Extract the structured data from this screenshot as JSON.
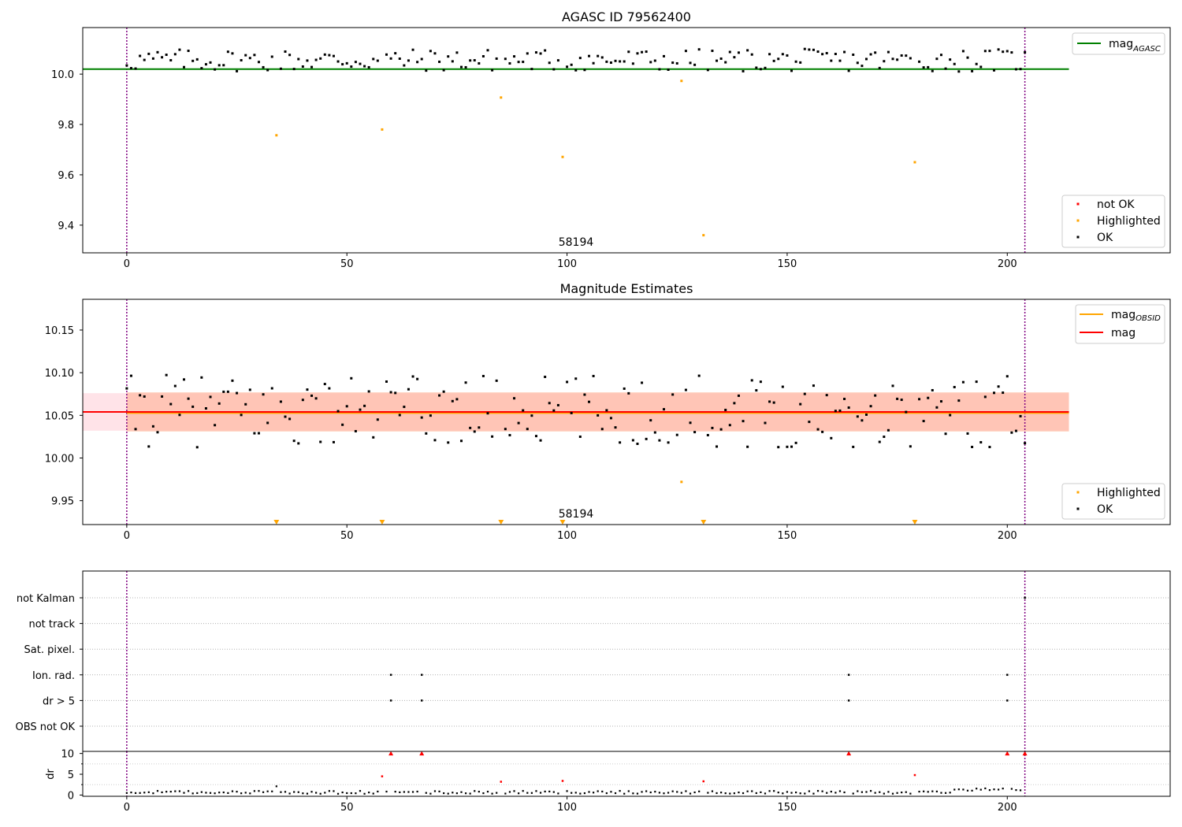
{
  "figure": {
    "colors": {
      "agasc_line": "#008000",
      "obsid_line": "#ffa500",
      "mag_line": "#ff0000",
      "ok": "#000000",
      "highlighted": "#ffa500",
      "not_ok": "#ff0000",
      "obs_vline": "#800080",
      "band_inner": "#ffa07a",
      "band_outer": "#ffc0cb"
    }
  },
  "chart_data": [
    {
      "id": "agasc",
      "type": "scatter",
      "title": "AGASC ID 79562400",
      "xlabel": "",
      "ylabel": "",
      "xlim": [
        -10,
        237
      ],
      "ylim": [
        9.29,
        10.185
      ],
      "xticks": [
        0,
        50,
        100,
        150,
        200
      ],
      "yticks": [
        9.4,
        9.6,
        9.8,
        10.0
      ],
      "ytick_labels": [
        "9.4",
        "9.6",
        "9.8",
        "10.0"
      ],
      "obs_lines_x": [
        0,
        204
      ],
      "obs_labels": [
        {
          "x": 102,
          "text": "58194"
        }
      ],
      "hline": {
        "y": 10.02,
        "x": [
          -10,
          214
        ],
        "label": "mag_AGASC"
      },
      "legend_top": [
        {
          "label": "mag",
          "sub": "AGASC",
          "style": "line",
          "color": "#008000"
        }
      ],
      "legend_bottom": [
        {
          "label": "not OK",
          "color": "#ff0000"
        },
        {
          "label": "Highlighted",
          "color": "#ffa500"
        },
        {
          "label": "OK",
          "color": "#000000"
        }
      ],
      "series": [
        {
          "name": "Highlighted",
          "color": "#ffa500",
          "x": [
            34,
            58,
            85,
            99,
            126,
            131,
            179
          ],
          "y": [
            9.757,
            9.78,
            9.907,
            9.671,
            9.973,
            9.36,
            9.65
          ]
        }
      ]
    },
    {
      "id": "estimates",
      "type": "scatter",
      "title": "Magnitude Estimates",
      "xlabel": "",
      "ylabel": "",
      "xlim": [
        -10,
        237
      ],
      "ylim": [
        9.922,
        10.186
      ],
      "xticks": [
        0,
        50,
        100,
        150,
        200
      ],
      "yticks": [
        9.95,
        10.0,
        10.05,
        10.1,
        10.15
      ],
      "ytick_labels": [
        "9.95",
        "10.00",
        "10.05",
        "10.10",
        "10.15"
      ],
      "obs_lines_x": [
        0,
        204
      ],
      "obs_labels": [
        {
          "x": 102,
          "text": "58194"
        }
      ],
      "mag": 10.054,
      "mag_obsid": 10.053,
      "band_obsid": [
        10.031,
        10.077
      ],
      "band_mag": [
        10.032,
        10.076
      ],
      "line_x": [
        -10,
        214
      ],
      "legend_top": [
        {
          "label": "mag",
          "sub": "OBSID",
          "style": "line",
          "color": "#ffa500"
        },
        {
          "label": "mag",
          "sub": "",
          "style": "line",
          "color": "#ff0000"
        }
      ],
      "legend_bottom": [
        {
          "label": "Highlighted",
          "color": "#ffa500"
        },
        {
          "label": "OK",
          "color": "#000000"
        }
      ],
      "series": [
        {
          "name": "Highlighted",
          "color": "#ffa500",
          "x": [
            126
          ],
          "y": [
            9.972
          ]
        },
        {
          "name": "Highlighted (below axis)",
          "color": "#ffa500",
          "marker": "triangle-down",
          "x": [
            34,
            58,
            85,
            99,
            131,
            179
          ],
          "y": [
            9.925,
            9.925,
            9.925,
            9.925,
            9.925,
            9.925
          ]
        }
      ]
    },
    {
      "id": "flags",
      "type": "scatter",
      "title": "",
      "xlabel": "",
      "ylabel": "",
      "xlim": [
        -10,
        237
      ],
      "categories": [
        "OBS not OK",
        "dr > 5",
        "Ion. rad.",
        "Sat. pixel.",
        "not track",
        "not Kalman"
      ],
      "xticks": [
        0,
        50,
        100,
        150,
        200
      ],
      "obs_lines_x": [
        0,
        204
      ],
      "series": [
        {
          "name": "Ion. rad.",
          "color": "#000000",
          "x": [
            60,
            67,
            164,
            200
          ]
        },
        {
          "name": "dr > 5",
          "color": "#000000",
          "x": [
            60,
            67,
            164,
            200
          ]
        },
        {
          "name": "not Kalman",
          "color": "#000000",
          "x": [
            204
          ]
        }
      ]
    },
    {
      "id": "dr",
      "type": "scatter",
      "title": "",
      "xlabel": "",
      "ylabel": "dr",
      "xlim": [
        -10,
        237
      ],
      "ylim": [
        -0.3,
        10.5
      ],
      "xticks": [
        0,
        50,
        100,
        150,
        200
      ],
      "yticks": [
        0,
        5,
        10
      ],
      "ytick_labels": [
        "0",
        "5",
        "10"
      ],
      "obs_lines_x": [
        0,
        204
      ],
      "series": [
        {
          "name": "not OK",
          "color": "#ff0000",
          "x": [
            58,
            85,
            99,
            131,
            179
          ],
          "y": [
            4.5,
            3.2,
            3.4,
            3.3,
            4.8
          ]
        },
        {
          "name": "not OK (clipped)",
          "color": "#ff0000",
          "marker": "triangle-up",
          "x": [
            60,
            67,
            164,
            200,
            204
          ],
          "y": [
            10,
            10,
            10,
            10,
            10
          ]
        }
      ]
    }
  ]
}
